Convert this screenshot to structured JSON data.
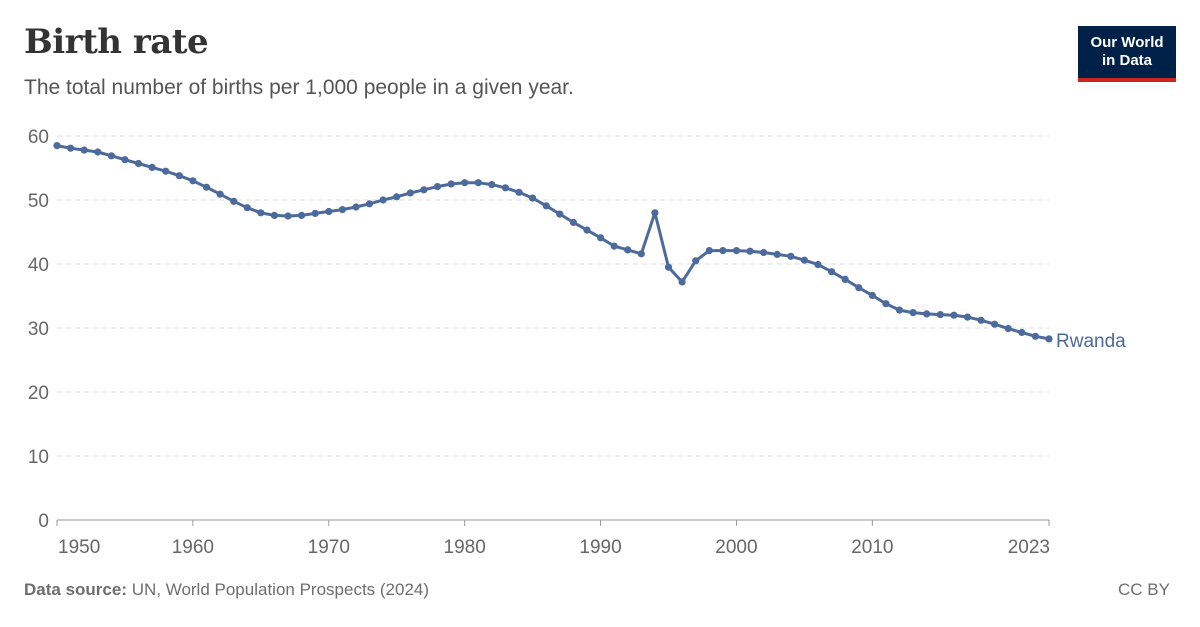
{
  "header": {
    "title": "Birth rate",
    "subtitle": "The total number of births per 1,000 people in a given year."
  },
  "logo": {
    "line1": "Our World",
    "line2": "in Data"
  },
  "footer": {
    "source_label": "Data source:",
    "source_text": " UN, World Population Prospects (2024)",
    "license": "CC BY"
  },
  "chart_data": {
    "type": "line",
    "y_ticks": [
      0,
      10,
      20,
      30,
      40,
      50,
      60
    ],
    "x_ticks": [
      1950,
      1960,
      1970,
      1980,
      1990,
      2000,
      2010,
      2023
    ],
    "xlim": [
      1950,
      2023
    ],
    "ylim": [
      0,
      60
    ],
    "grid": "horizontal-dashed",
    "series": [
      {
        "name": "Rwanda",
        "color": "#4c6a9c",
        "x": [
          1950,
          1951,
          1952,
          1953,
          1954,
          1955,
          1956,
          1957,
          1958,
          1959,
          1960,
          1961,
          1962,
          1963,
          1964,
          1965,
          1966,
          1967,
          1968,
          1969,
          1970,
          1971,
          1972,
          1973,
          1974,
          1975,
          1976,
          1977,
          1978,
          1979,
          1980,
          1981,
          1982,
          1983,
          1984,
          1985,
          1986,
          1987,
          1988,
          1989,
          1990,
          1991,
          1992,
          1993,
          1994,
          1995,
          1996,
          1997,
          1998,
          1999,
          2000,
          2001,
          2002,
          2003,
          2004,
          2005,
          2006,
          2007,
          2008,
          2009,
          2010,
          2011,
          2012,
          2013,
          2014,
          2015,
          2016,
          2017,
          2018,
          2019,
          2020,
          2021,
          2022,
          2023
        ],
        "values": [
          58.5,
          58.1,
          57.8,
          57.5,
          56.9,
          56.3,
          55.7,
          55.1,
          54.5,
          53.8,
          53.0,
          52.0,
          50.9,
          49.8,
          48.8,
          48.0,
          47.6,
          47.5,
          47.6,
          47.9,
          48.2,
          48.5,
          48.9,
          49.4,
          50.0,
          50.5,
          51.1,
          51.6,
          52.1,
          52.5,
          52.7,
          52.7,
          52.4,
          51.9,
          51.2,
          50.3,
          49.1,
          47.8,
          46.5,
          45.3,
          44.1,
          42.8,
          42.2,
          41.6,
          48.0,
          39.5,
          37.2,
          40.5,
          42.1,
          42.1,
          42.1,
          42.0,
          41.8,
          41.5,
          41.2,
          40.6,
          39.9,
          38.8,
          37.6,
          36.3,
          35.1,
          33.8,
          32.8,
          32.4,
          32.2,
          32.1,
          32.0,
          31.7,
          31.2,
          30.6,
          29.9,
          29.3,
          28.7,
          28.3
        ]
      }
    ]
  }
}
